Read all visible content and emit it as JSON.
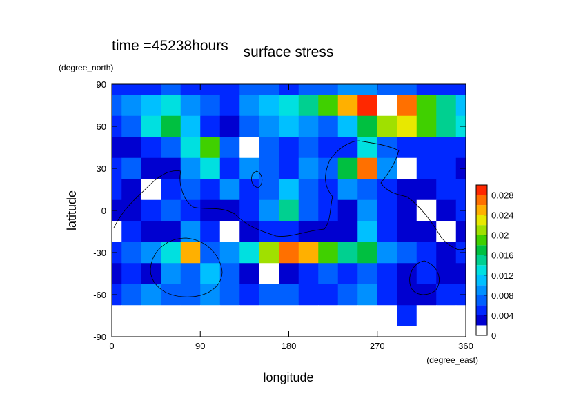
{
  "chart_data": {
    "type": "contour",
    "title": "surface stress",
    "subtitle": "time =45238hours",
    "x_label": "longitude",
    "x_unit": "(degree_east)",
    "y_label": "latitude",
    "y_unit": "(degree_north)",
    "xlim": [
      0,
      360
    ],
    "xticks": [
      0,
      90,
      180,
      270,
      360
    ],
    "ylim": [
      -90,
      90
    ],
    "yticks": [
      -90,
      -60,
      -30,
      0,
      30,
      60,
      90
    ],
    "x": [
      0,
      20,
      40,
      60,
      80,
      100,
      120,
      140,
      160,
      180,
      200,
      220,
      240,
      260,
      280,
      300,
      320,
      340,
      360
    ],
    "y": [
      90,
      75,
      60,
      45,
      30,
      15,
      0,
      -15,
      -30,
      -45,
      -60,
      -75,
      -90
    ],
    "z": [
      [
        0.004,
        0.005,
        0.005,
        0.006,
        0.005,
        0.004,
        0.005,
        0.006,
        0.006,
        0.005,
        0.006,
        0.007,
        0.008,
        0.008,
        0.007,
        0.006,
        0.005,
        0.005,
        0.004
      ],
      [
        0.006,
        0.008,
        0.01,
        0.012,
        0.009,
        0.006,
        0.004,
        0.008,
        0.01,
        0.012,
        0.014,
        0.018,
        0.024,
        0.028,
        0.032,
        0.026,
        0.018,
        0.014,
        0.01
      ],
      [
        0.004,
        0.006,
        0.012,
        0.016,
        0.01,
        0.004,
        0.002,
        0.006,
        0.008,
        0.01,
        0.008,
        0.006,
        0.01,
        0.016,
        0.02,
        0.022,
        0.018,
        0.014,
        0.012
      ],
      [
        0.003,
        0.002,
        0.004,
        0.006,
        0.012,
        0.018,
        0.006,
        0.001,
        0.006,
        0.004,
        0.006,
        0.004,
        0.004,
        0.012,
        0.006,
        0.004,
        0.004,
        0.005,
        0.004
      ],
      [
        0.004,
        0.006,
        0.003,
        0.002,
        0.008,
        0.012,
        0.004,
        0.008,
        0.006,
        0.004,
        0.008,
        0.006,
        0.016,
        0.026,
        0.008,
        0.001,
        0.004,
        0.004,
        0.003
      ],
      [
        0.004,
        0.003,
        0.001,
        0.004,
        0.006,
        0.004,
        0.008,
        0.004,
        0.006,
        0.01,
        0.006,
        0.004,
        0.008,
        0.006,
        0.004,
        0.003,
        0.002,
        0.004,
        0.005
      ],
      [
        0.003,
        0.002,
        0.004,
        0.006,
        0.004,
        0.003,
        0.002,
        0.004,
        0.008,
        0.014,
        0.006,
        0.004,
        0.003,
        0.008,
        0.004,
        0.002,
        0.001,
        0.003,
        0.004
      ],
      [
        0.001,
        0.004,
        0.002,
        0.003,
        0.008,
        0.004,
        0.001,
        0.003,
        0.004,
        0.004,
        0.003,
        0.003,
        0.002,
        0.01,
        0.004,
        0.003,
        0.002,
        0.001,
        0.003
      ],
      [
        0.004,
        0.006,
        0.008,
        0.012,
        0.024,
        0.006,
        0.008,
        0.012,
        0.02,
        0.026,
        0.024,
        0.018,
        0.014,
        0.016,
        0.008,
        0.006,
        0.004,
        0.003,
        0.004
      ],
      [
        0.002,
        0.004,
        0.003,
        0.008,
        0.006,
        0.01,
        0.006,
        0.002,
        0.001,
        0.002,
        0.004,
        0.006,
        0.004,
        0.006,
        0.004,
        0.002,
        0.004,
        0.002,
        0.003
      ],
      [
        0.004,
        0.006,
        0.008,
        0.006,
        0.006,
        0.008,
        0.006,
        0.004,
        0.006,
        0.006,
        0.004,
        0.004,
        0.006,
        0.008,
        0.004,
        0.002,
        0.002,
        0.004,
        0.004
      ],
      [
        0,
        0,
        0,
        0,
        0,
        0,
        0,
        0,
        0,
        0,
        0,
        0,
        0,
        0,
        0,
        0.004,
        0,
        0,
        0
      ],
      [
        0,
        0,
        0,
        0,
        0,
        0,
        0,
        0,
        0,
        0,
        0,
        0,
        0,
        0,
        0,
        0,
        0,
        0,
        0
      ]
    ],
    "levels": [
      0,
      0.002,
      0.004,
      0.006,
      0.008,
      0.01,
      0.012,
      0.014,
      0.016,
      0.018,
      0.02,
      0.022,
      0.024,
      0.026,
      0.028,
      0.03
    ],
    "colors": [
      "#ffffff",
      "#0000d0",
      "#0028ff",
      "#0060ff",
      "#0090ff",
      "#00c0ff",
      "#00e0e0",
      "#00d090",
      "#00c040",
      "#40d000",
      "#a0e000",
      "#e8e800",
      "#ffb000",
      "#ff7000",
      "#ff2800"
    ],
    "over_color": "#ffffff",
    "cticks": [
      0,
      0.004,
      0.008,
      0.012,
      0.016,
      0.02,
      0.024,
      0.028
    ]
  }
}
